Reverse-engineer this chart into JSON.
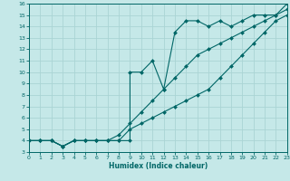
{
  "xlabel": "Humidex (Indice chaleur)",
  "bg_color": "#c5e8e8",
  "line_color": "#006666",
  "grid_color": "#aad4d4",
  "xlim": [
    0,
    23
  ],
  "ylim": [
    3,
    16
  ],
  "xticks": [
    0,
    1,
    2,
    3,
    4,
    5,
    6,
    7,
    8,
    9,
    10,
    11,
    12,
    13,
    14,
    15,
    16,
    17,
    18,
    19,
    20,
    21,
    22,
    23
  ],
  "yticks": [
    3,
    4,
    5,
    6,
    7,
    8,
    9,
    10,
    11,
    12,
    13,
    14,
    15,
    16
  ],
  "line1_x": [
    0,
    1,
    2,
    3,
    4,
    5,
    6,
    7,
    8,
    9,
    9,
    10,
    11,
    12,
    13,
    14,
    15,
    16,
    17,
    18,
    19,
    20,
    21,
    22,
    23
  ],
  "line1_y": [
    4,
    4,
    4,
    3.5,
    4,
    4,
    4,
    4,
    4,
    4,
    10,
    10,
    11,
    8.5,
    13.5,
    14.5,
    14.5,
    14,
    14.5,
    14,
    14.5,
    15,
    15,
    15,
    16
  ],
  "line2_x": [
    0,
    1,
    2,
    3,
    4,
    5,
    6,
    7,
    8,
    9,
    10,
    11,
    12,
    13,
    14,
    15,
    16,
    17,
    18,
    19,
    20,
    21,
    22,
    23
  ],
  "line2_y": [
    4,
    4,
    4,
    3.5,
    4,
    4,
    4,
    4,
    4,
    5,
    5.5,
    6,
    6.5,
    7,
    7.5,
    8,
    8.5,
    9.5,
    10.5,
    11.5,
    12.5,
    13.5,
    14.5,
    15
  ],
  "line3_x": [
    0,
    1,
    2,
    3,
    4,
    5,
    6,
    7,
    8,
    9,
    10,
    11,
    12,
    13,
    14,
    15,
    16,
    17,
    18,
    19,
    20,
    21,
    22,
    23
  ],
  "line3_y": [
    4,
    4,
    4,
    3.5,
    4,
    4,
    4,
    4,
    4.5,
    5.5,
    6.5,
    7.5,
    8.5,
    9.5,
    10.5,
    11.5,
    12,
    12.5,
    13,
    13.5,
    14,
    14.5,
    15,
    15.5
  ]
}
